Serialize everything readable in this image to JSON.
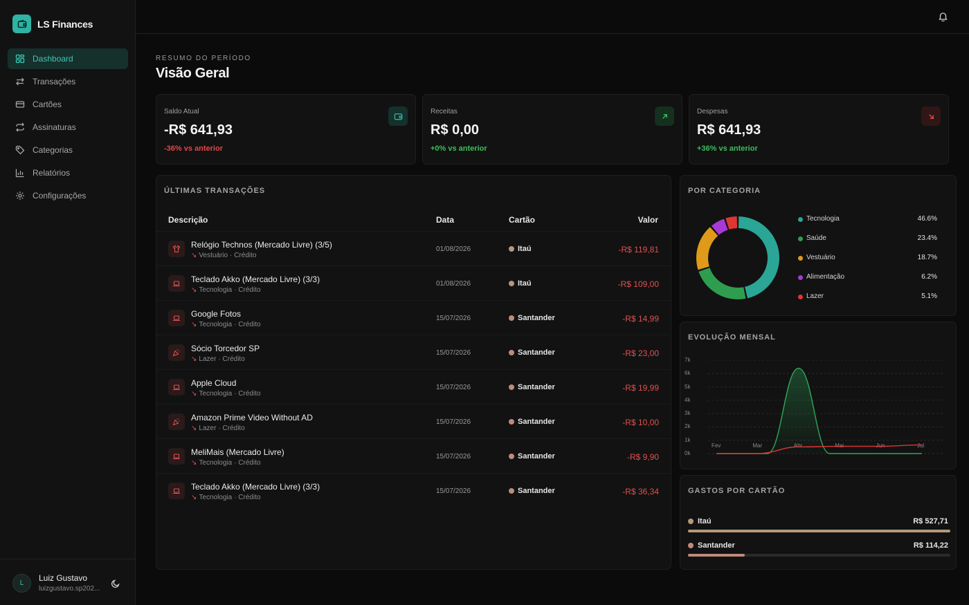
{
  "app": {
    "name": "LS Finances"
  },
  "sidebar": {
    "items": [
      {
        "label": "Dashboard",
        "icon": "dashboard-icon",
        "active": true
      },
      {
        "label": "Transações",
        "icon": "transfer-icon",
        "active": false
      },
      {
        "label": "Cartões",
        "icon": "card-icon",
        "active": false
      },
      {
        "label": "Assinaturas",
        "icon": "repeat-icon",
        "active": false
      },
      {
        "label": "Categorias",
        "icon": "tag-icon",
        "active": false
      },
      {
        "label": "Relatórios",
        "icon": "bar-chart-icon",
        "active": false
      },
      {
        "label": "Configurações",
        "icon": "gear-icon",
        "active": false
      }
    ]
  },
  "user": {
    "initial": "L",
    "name": "Luiz Gustavo",
    "email": "luizgustavo.sp202..."
  },
  "header": {
    "kicker": "RESUMO DO PERÍODO",
    "title": "Visão Geral"
  },
  "stats": [
    {
      "label": "Saldo Atual",
      "value": "-R$ 641,93",
      "change": "-36% vs anterior",
      "change_color": "#e04848",
      "icon": "wallet-icon",
      "icon_color": "#2fb3a3",
      "icon_bg": "#16302c"
    },
    {
      "label": "Receitas",
      "value": "R$ 0,00",
      "change": "+0% vs anterior",
      "change_color": "#3bbf5e",
      "icon": "arrow-up-right-icon",
      "icon_color": "#3bbf5e",
      "icon_bg": "#15301e"
    },
    {
      "label": "Despesas",
      "value": "R$ 641,93",
      "change": "+36% vs anterior",
      "change_color": "#3bbf5e",
      "icon": "arrow-down-right-icon",
      "icon_color": "#e04848",
      "icon_bg": "#301616"
    }
  ],
  "transactions": {
    "title": "ÚLTIMAS TRANSAÇÕES",
    "columns": {
      "description": "Descrição",
      "date": "Data",
      "card": "Cartão",
      "value": "Valor"
    },
    "rows": [
      {
        "title": "Relógio Technos (Mercado Livre) (3/5)",
        "category": "Vestuário",
        "type": "· Crédito",
        "date": "01/08/2026",
        "card": "Itaú",
        "card_color": "#b5997a",
        "value": "-R$ 119,81",
        "icon": "shirt-icon"
      },
      {
        "title": "Teclado Akko (Mercado Livre) (3/3)",
        "category": "Tecnologia",
        "type": "· Crédito",
        "date": "01/08/2026",
        "card": "Itaú",
        "card_color": "#b5997a",
        "value": "-R$ 109,00",
        "icon": "laptop-icon"
      },
      {
        "title": "Google Fotos",
        "category": "Tecnologia",
        "type": "· Crédito",
        "date": "15/07/2026",
        "card": "Santander",
        "card_color": "#c08a7a",
        "value": "-R$ 14,99",
        "icon": "laptop-icon"
      },
      {
        "title": "Sócio Torcedor SP",
        "category": "Lazer",
        "type": "· Crédito",
        "date": "15/07/2026",
        "card": "Santander",
        "card_color": "#c08a7a",
        "value": "-R$ 23,00",
        "icon": "party-icon"
      },
      {
        "title": "Apple Cloud",
        "category": "Tecnologia",
        "type": "· Crédito",
        "date": "15/07/2026",
        "card": "Santander",
        "card_color": "#c08a7a",
        "value": "-R$ 19,99",
        "icon": "laptop-icon"
      },
      {
        "title": "Amazon Prime Video Without AD",
        "category": "Lazer",
        "type": "· Crédito",
        "date": "15/07/2026",
        "card": "Santander",
        "card_color": "#c08a7a",
        "value": "-R$ 10,00",
        "icon": "party-icon"
      },
      {
        "title": "MeliMais (Mercado Livre)",
        "category": "Tecnologia",
        "type": "· Crédito",
        "date": "15/07/2026",
        "card": "Santander",
        "card_color": "#c08a7a",
        "value": "-R$ 9,90",
        "icon": "laptop-icon"
      },
      {
        "title": "Teclado Akko (Mercado Livre) (3/3)",
        "category": "Tecnologia",
        "type": "· Crédito",
        "date": "15/07/2026",
        "card": "Santander",
        "card_color": "#c08a7a",
        "value": "-R$ 36,34",
        "icon": "laptop-icon"
      }
    ]
  },
  "by_category": {
    "title": "POR CATEGORIA",
    "items": [
      {
        "name": "Tecnologia",
        "pct": "46.6%",
        "value": 46.6,
        "color": "#2aa596"
      },
      {
        "name": "Saúde",
        "pct": "23.4%",
        "value": 23.4,
        "color": "#2f9d4f"
      },
      {
        "name": "Vestuário",
        "pct": "18.7%",
        "value": 18.7,
        "color": "#e09a19"
      },
      {
        "name": "Alimentação",
        "pct": "6.2%",
        "value": 6.2,
        "color": "#a63ad6"
      },
      {
        "name": "Lazer",
        "pct": "5.1%",
        "value": 5.1,
        "color": "#e03535"
      }
    ]
  },
  "monthly": {
    "title": "EVOLUÇÃO MENSAL"
  },
  "chart_data": {
    "type": "area",
    "x": [
      "Fev",
      "Mar",
      "Abr",
      "Mai",
      "Jun",
      "Jul"
    ],
    "y_ticks": [
      "0k",
      "1k",
      "2k",
      "3k",
      "4k",
      "5k",
      "6k",
      "7k"
    ],
    "ylim": [
      0,
      7000
    ],
    "grid": true,
    "series": [
      {
        "color": "#2fa85a",
        "values": [
          0,
          0,
          6400,
          0,
          0,
          0
        ]
      },
      {
        "color": "#e03535",
        "values": [
          0,
          0,
          500,
          550,
          550,
          650
        ]
      }
    ]
  },
  "card_spending": {
    "title": "GASTOS POR CARTÃO",
    "items": [
      {
        "name": "Itaú",
        "value": "R$ 527,71",
        "fraction": 1.0,
        "color": "#b5997a"
      },
      {
        "name": "Santander",
        "value": "R$ 114,22",
        "fraction": 0.216,
        "color": "#c08a7a"
      }
    ]
  }
}
